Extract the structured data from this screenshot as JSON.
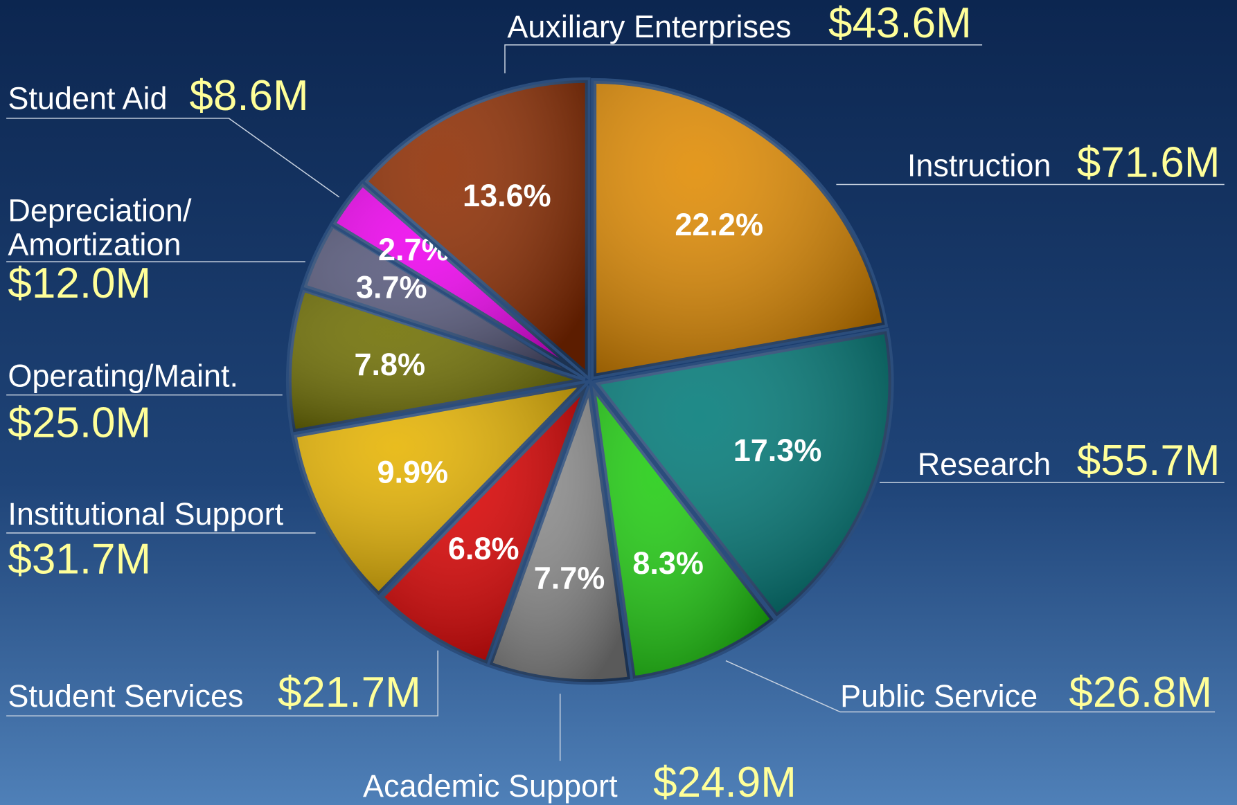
{
  "chart_data": {
    "type": "pie",
    "categories": [
      "Instruction",
      "Research",
      "Public Service",
      "Academic Support",
      "Student Services",
      "Institutional Support",
      "Operating/Maint.",
      "Depreciation/\nAmortization",
      "Student Aid",
      "Auxiliary Enterprises"
    ],
    "values": [
      22.2,
      17.3,
      8.3,
      7.7,
      6.8,
      9.9,
      7.8,
      3.7,
      2.7,
      13.6
    ],
    "value_labels": [
      "22.2%",
      "17.3%",
      "8.3%",
      "7.7%",
      "6.8%",
      "9.9%",
      "7.8%",
      "3.7%",
      "2.7%",
      "13.6%"
    ],
    "amounts": [
      "$71.6M",
      "$55.7M",
      "$26.8M",
      "$24.9M",
      "$21.7M",
      "$31.7M",
      "$25.0M",
      "$12.0M",
      "$8.6M",
      "$43.6M"
    ],
    "colors": [
      "#e08a00",
      "#007a78",
      "#1fcc10",
      "#8a8a8a",
      "#dd0000",
      "#e6b300",
      "#6e6e00",
      "#55577a",
      "#ee00ee",
      "#8e2c00"
    ]
  }
}
